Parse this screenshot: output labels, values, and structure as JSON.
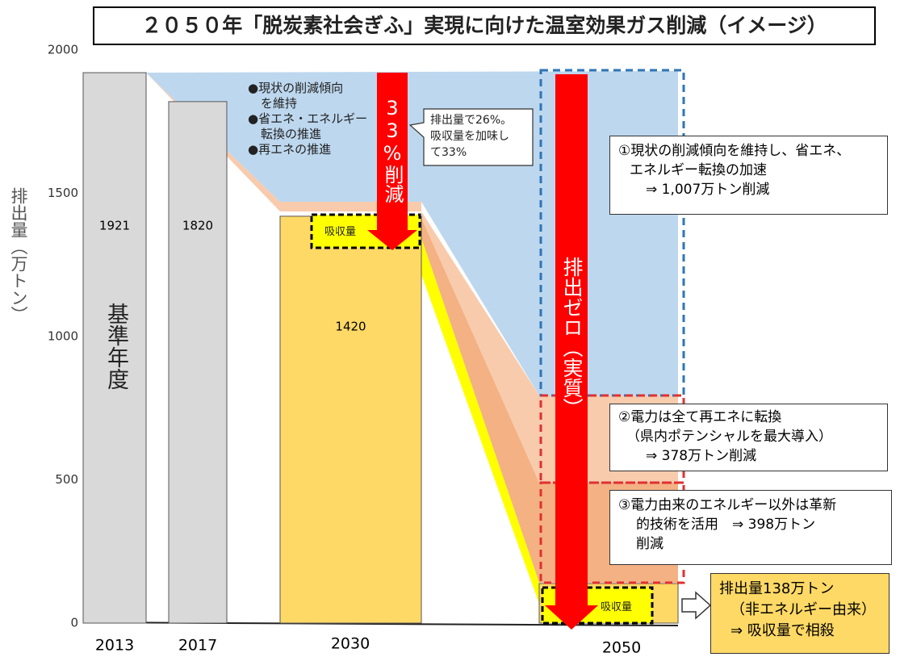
{
  "chart_data": {
    "type": "bar",
    "title": "２０５０年「脱炭素社会ぎふ」実現に向けた温室効果ガス削減（イメージ）",
    "ylabel": "排出量（万トン）",
    "categories": [
      "2013",
      "2017",
      "2030",
      "2050"
    ],
    "values": [
      1921,
      1820,
      1420,
      138
    ],
    "value_labels": [
      "1921",
      "1820",
      "1420",
      null
    ],
    "colors": [
      "#d9d9d9",
      "#d9d9d9",
      "#ffd966",
      "#ffd966"
    ],
    "ylim": [
      0,
      2000
    ],
    "yticks": [
      0,
      500,
      1000,
      1500,
      2000
    ],
    "grid": false
  },
  "annotations": {
    "base_year": "基準年度",
    "measures_2030": [
      "●現状の削減傾向",
      "を維持",
      "●省エネ・エネルギー",
      "転換の推進",
      "●再エネの推進"
    ],
    "callout_2030": [
      "排出量で26%。",
      "吸収量を加味し",
      "て33%"
    ],
    "reduction_2030": "33%削減",
    "absorption": [
      "吸収量",
      "吸収量"
    ],
    "zero_2050": "排出ゼロ（実質）",
    "measure_1": [
      "①現状の削減傾向を維持し、省エネ、",
      "エネルギー転換の加速",
      "⇒ 1,007万トン削減"
    ],
    "measure_2": [
      "②電力は全て再エネに転換",
      "（県内ポテンシャルを最大導入）",
      "⇒ 378万トン削減"
    ],
    "measure_3": [
      "③電力由来のエネルギー以外は革新",
      "的技術を活用　⇒ 398万トン",
      "削減"
    ],
    "result_2050": [
      "排出量138万トン",
      "（非エネルギー由来）",
      "⇒ 吸収量で相殺"
    ]
  }
}
